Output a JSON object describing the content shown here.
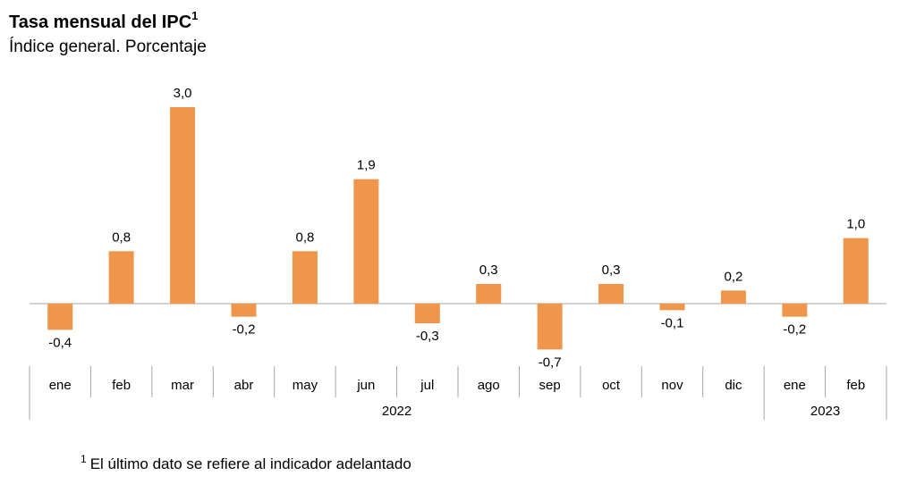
{
  "chart_data": {
    "type": "bar",
    "title": "Tasa mensual del IPC",
    "title_note": "1",
    "subtitle": "Índice general. Porcentaje",
    "footnote_marker": "1",
    "footnote": "El último dato se refiere al indicador adelantado",
    "groups": [
      {
        "label": "2022",
        "categories": [
          "ene",
          "feb",
          "mar",
          "abr",
          "may",
          "jun",
          "jul",
          "ago",
          "sep",
          "oct",
          "nov",
          "dic"
        ]
      },
      {
        "label": "2023",
        "categories": [
          "ene",
          "feb"
        ]
      }
    ],
    "values": [
      -0.4,
      0.8,
      3.0,
      -0.2,
      0.8,
      1.9,
      -0.3,
      0.3,
      -0.7,
      0.3,
      -0.1,
      0.2,
      -0.2,
      1.0
    ],
    "value_labels": [
      "-0,4",
      "0,8",
      "3,0",
      "-0,2",
      "0,8",
      "1,9",
      "-0,3",
      "0,3",
      "-0,7",
      "0,3",
      "-0,1",
      "0,2",
      "-0,2",
      "1,0"
    ],
    "color": "#f0964a"
  }
}
